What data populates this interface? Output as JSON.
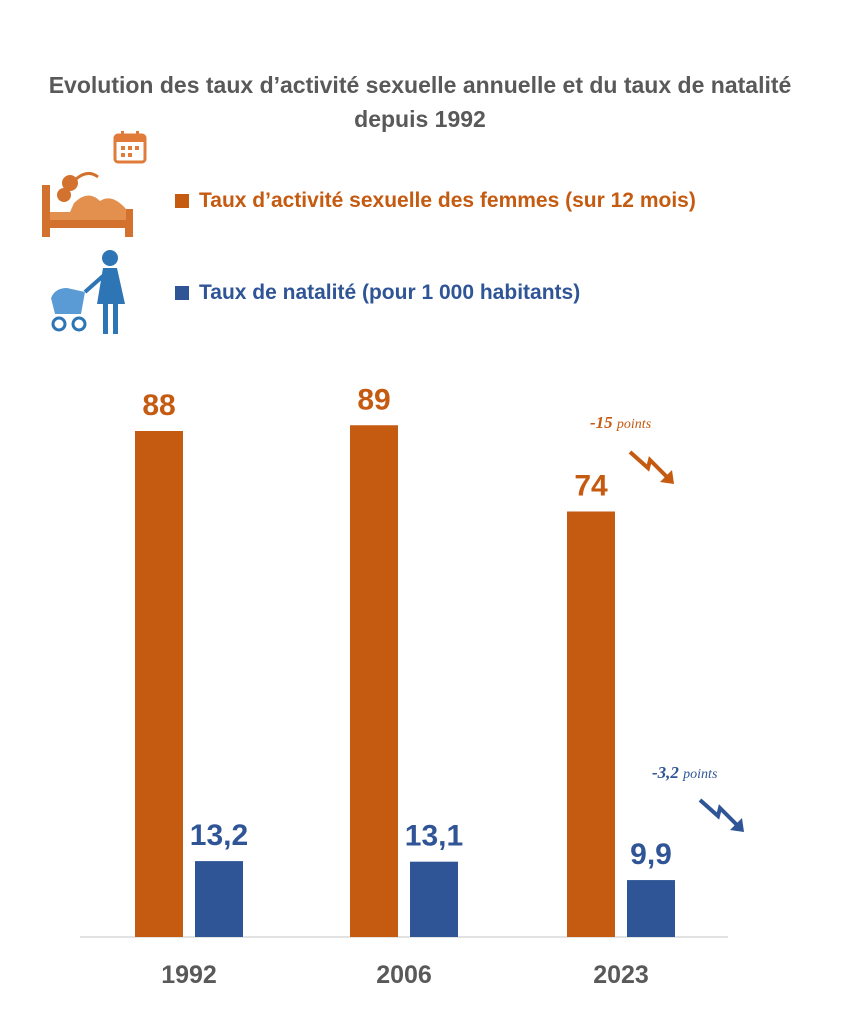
{
  "title": "Evolution des taux d’activité sexuelle annuelle et du taux de natalité depuis 1992",
  "icons": [
    "calendar-icon",
    "bed-couple-icon",
    "mother-stroller-icon"
  ],
  "colors": {
    "orange": "#c55a11",
    "blue": "#2f5597",
    "axis": "#d9d9d9",
    "text": "#595959"
  },
  "chart_data": {
    "type": "bar",
    "categories": [
      "1992",
      "2006",
      "2023"
    ],
    "series": [
      {
        "name": "Taux d’activité sexuelle des femmes (sur 12 mois)",
        "values": [
          88,
          89,
          74
        ],
        "labels": [
          "88",
          "89",
          "74"
        ],
        "color": "#c55a11"
      },
      {
        "name": "Taux de natalité (pour 1 000 habitants)",
        "values": [
          13.2,
          13.1,
          9.9
        ],
        "labels": [
          "13,2",
          "13,1",
          "9,9"
        ],
        "color": "#2f5597"
      }
    ],
    "annotations": [
      {
        "series": 0,
        "category": "2023",
        "text": "-15",
        "suffix": "points"
      },
      {
        "series": 1,
        "category": "2023",
        "text": "-3,2",
        "suffix": "points"
      }
    ],
    "xlabel": "",
    "ylabel": "",
    "grid": false,
    "legend": "top"
  }
}
